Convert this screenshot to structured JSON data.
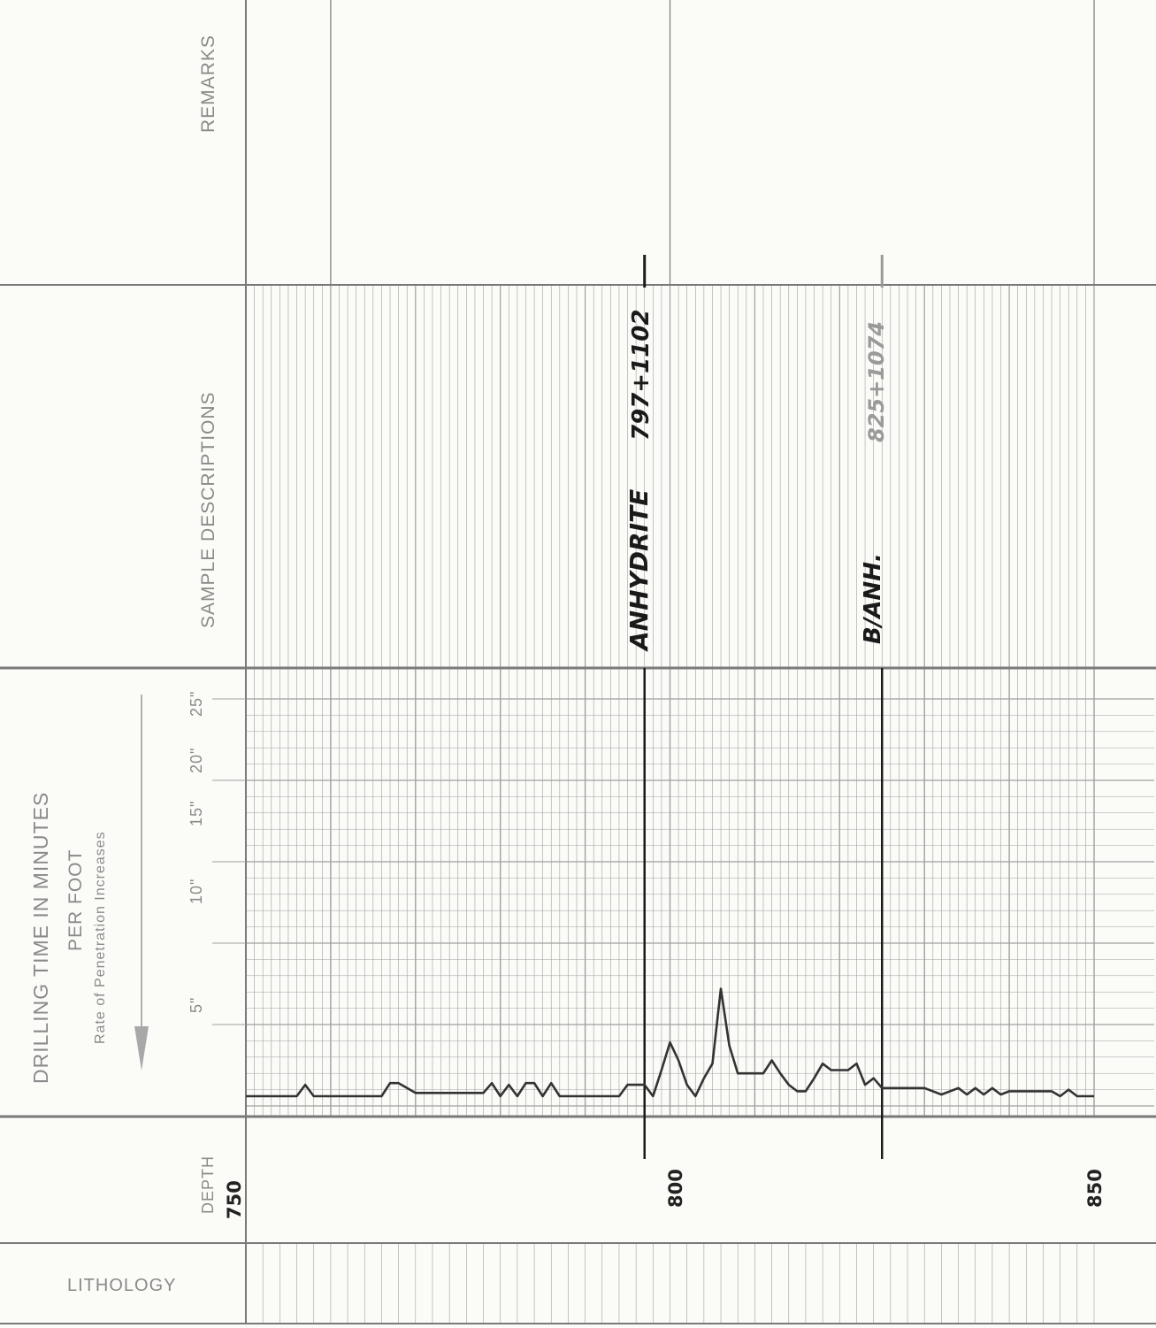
{
  "sections": {
    "remarks": "REMARKS",
    "sample_descriptions": "SAMPLE DESCRIPTIONS",
    "drilling_time_title": "DRILLING TIME IN MINUTES",
    "drilling_time_subtitle": "PER FOOT",
    "rate_note": "Rate of Penetration Increases",
    "depth": "DEPTH",
    "lithology": "LITHOLOGY"
  },
  "scale_ticks": [
    "5\"",
    "10\"",
    "15\"",
    "20\"",
    "25\""
  ],
  "depth_labels": [
    "750",
    "800",
    "850"
  ],
  "annotations": {
    "anhydrite_top_label": "ANHYDRITE",
    "anhydrite_top_value": "797+1102",
    "anhydrite_base_label": "B/ANH.",
    "anhydrite_base_value": "825+1074"
  },
  "chart_data": {
    "type": "line",
    "title": "DRILLING TIME IN MINUTES PER FOOT",
    "xlabel": "DEPTH",
    "ylabel": "Rate of Penetration Increases",
    "xlim": [
      750,
      850
    ],
    "ylim": [
      0,
      25
    ],
    "grid": true,
    "x": [
      750,
      752,
      754,
      756,
      757,
      758,
      759,
      760,
      762,
      764,
      766,
      767,
      768,
      770,
      772,
      774,
      776,
      778,
      779,
      780,
      781,
      782,
      783,
      784,
      785,
      786,
      787,
      788,
      790,
      792,
      794,
      795,
      796,
      797,
      798,
      799,
      800,
      801,
      802,
      803,
      804,
      805,
      806,
      807,
      808,
      809,
      810,
      811,
      812,
      813,
      814,
      815,
      816,
      817,
      818,
      819,
      820,
      821,
      822,
      823,
      824,
      825,
      826,
      827,
      828,
      829,
      830,
      832,
      834,
      835,
      836,
      837,
      838,
      839,
      840,
      841,
      842,
      843,
      844,
      845,
      846,
      847,
      848,
      849,
      850
    ],
    "y": [
      0.6,
      0.6,
      0.6,
      0.6,
      1.3,
      0.6,
      0.6,
      0.6,
      0.6,
      0.6,
      0.6,
      1.4,
      1.4,
      0.8,
      0.8,
      0.8,
      0.8,
      0.8,
      1.4,
      0.6,
      1.3,
      0.6,
      1.4,
      1.4,
      0.6,
      1.4,
      0.6,
      0.6,
      0.6,
      0.6,
      0.6,
      1.3,
      1.3,
      1.3,
      0.6,
      2.2,
      3.9,
      2.8,
      1.3,
      0.6,
      1.7,
      2.6,
      7.2,
      3.7,
      2.0,
      2.0,
      2.0,
      2.0,
      2.8,
      2.0,
      1.3,
      0.9,
      0.9,
      1.7,
      2.6,
      2.2,
      2.2,
      2.2,
      2.6,
      1.3,
      1.7,
      1.1,
      1.1,
      1.1,
      1.1,
      1.1,
      1.1,
      0.7,
      1.1,
      0.7,
      1.1,
      0.7,
      1.1,
      0.7,
      0.9,
      0.9,
      0.9,
      0.9,
      0.9,
      0.9,
      0.6,
      1.0,
      0.6,
      0.6,
      0.6
    ]
  },
  "colors": {
    "grid": "#a0a0a0",
    "frame": "#7a7a7a",
    "curve": "#333333",
    "ink": "#1a1a1a",
    "pencil": "#9a9a9a"
  }
}
